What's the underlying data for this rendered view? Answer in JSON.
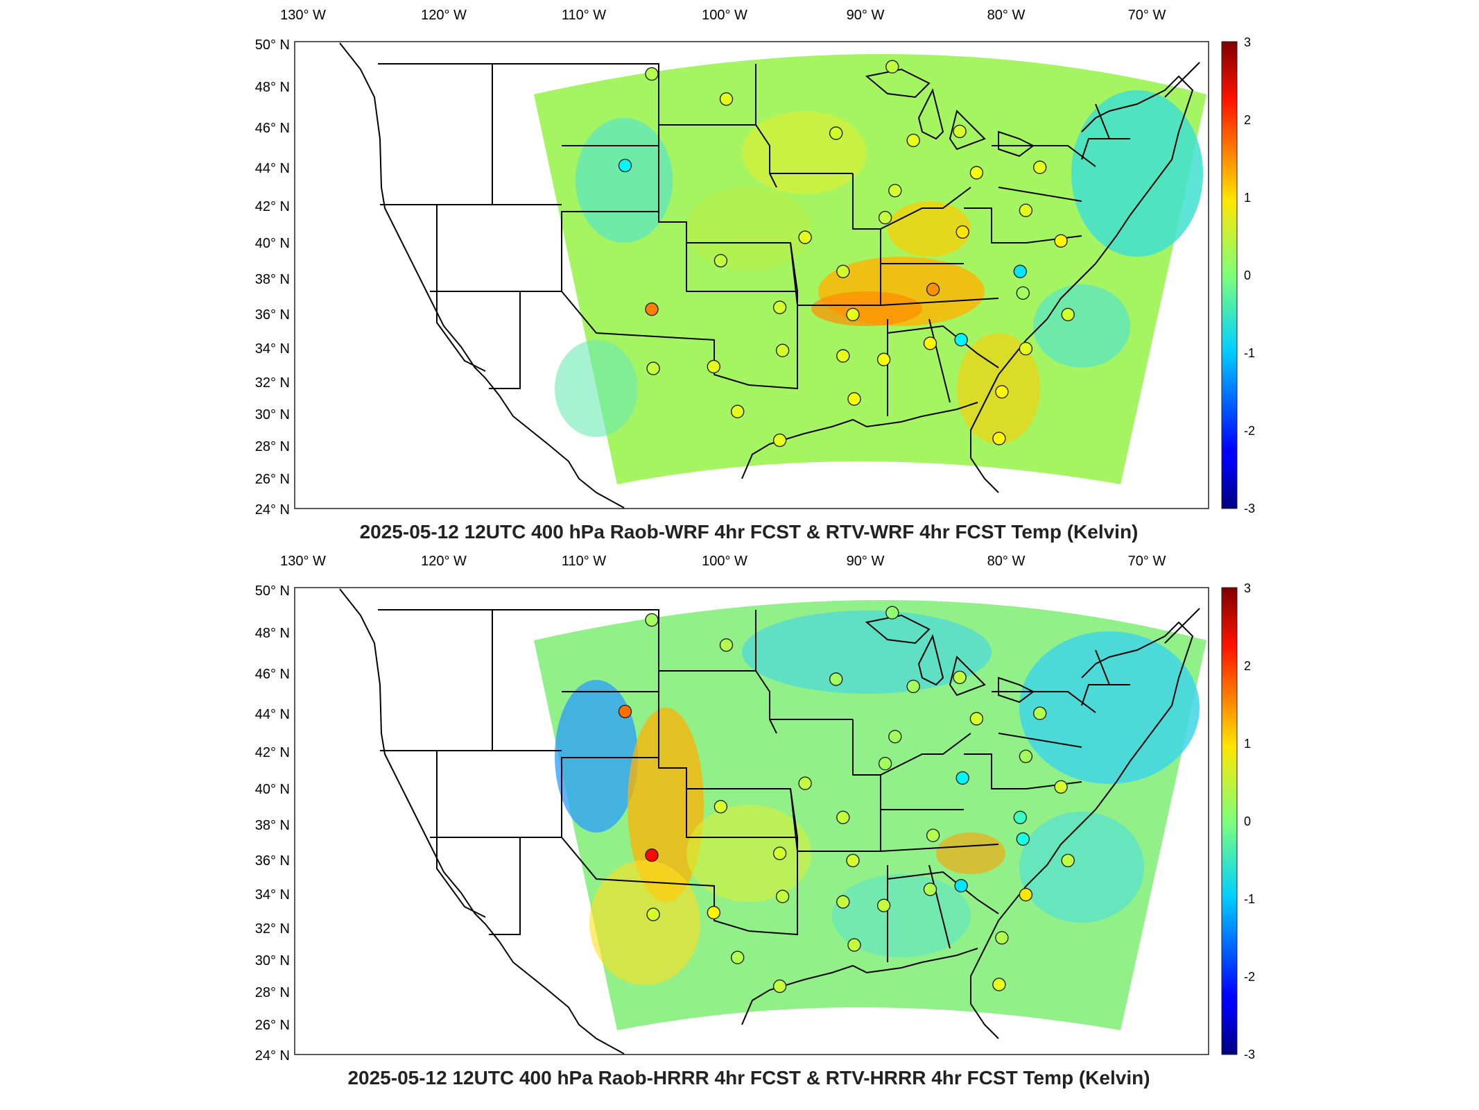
{
  "figure": {
    "panels": [
      {
        "id": "wrf",
        "title": "2025-05-12 12UTC 400 hPa Raob-WRF 4hr FCST & RTV-WRF 4hr FCST Temp (Kelvin)",
        "lon_ticks": [
          "130° W",
          "120° W",
          "110° W",
          "100° W",
          "90° W",
          "80° W",
          "70° W"
        ],
        "lat_ticks": [
          "50° N",
          "48° N",
          "46° N",
          "44° N",
          "42° N",
          "40° N",
          "38° N",
          "36° N",
          "34° N",
          "32° N",
          "30° N",
          "28° N",
          "26° N",
          "24° N"
        ],
        "colorbar": {
          "min": -3,
          "max": 3,
          "ticks": [
            "3",
            "2",
            "1",
            "0",
            "-1",
            "-2",
            "-3"
          ],
          "colormap": "jet"
        },
        "raob_sites": [
          {
            "lon": -106.6,
            "lat": 48.2,
            "value": 0.3
          },
          {
            "lon": -101.3,
            "lat": 46.8,
            "value": 0.6
          },
          {
            "lon": -108.5,
            "lat": 43.1,
            "value": -0.8
          },
          {
            "lon": -93.5,
            "lat": 44.9,
            "value": 0.5
          },
          {
            "lon": -89.5,
            "lat": 48.6,
            "value": 0.4
          },
          {
            "lon": -88.0,
            "lat": 44.5,
            "value": 0.6
          },
          {
            "lon": -84.7,
            "lat": 45.0,
            "value": 0.5
          },
          {
            "lon": -83.5,
            "lat": 42.7,
            "value": 0.7
          },
          {
            "lon": -79.0,
            "lat": 43.0,
            "value": 0.6
          },
          {
            "lon": -89.3,
            "lat": 41.7,
            "value": 0.5
          },
          {
            "lon": -90.0,
            "lat": 40.2,
            "value": 0.4
          },
          {
            "lon": -84.5,
            "lat": 39.4,
            "value": 0.9
          },
          {
            "lon": -80.0,
            "lat": 40.6,
            "value": 0.6
          },
          {
            "lon": -77.5,
            "lat": 38.9,
            "value": 0.8
          },
          {
            "lon": -80.4,
            "lat": 37.2,
            "value": -0.9
          },
          {
            "lon": -95.7,
            "lat": 39.1,
            "value": 0.6
          },
          {
            "lon": -101.7,
            "lat": 37.8,
            "value": 0.4
          },
          {
            "lon": -106.6,
            "lat": 35.1,
            "value": 1.5
          },
          {
            "lon": -97.5,
            "lat": 35.2,
            "value": 0.5
          },
          {
            "lon": -93.0,
            "lat": 37.2,
            "value": 0.5
          },
          {
            "lon": -92.3,
            "lat": 34.8,
            "value": 0.6
          },
          {
            "lon": -86.6,
            "lat": 36.2,
            "value": 1.4
          },
          {
            "lon": -80.2,
            "lat": 36.0,
            "value": 0.2
          },
          {
            "lon": -77.0,
            "lat": 34.8,
            "value": 0.5
          },
          {
            "lon": -84.6,
            "lat": 33.4,
            "value": -0.8
          },
          {
            "lon": -86.8,
            "lat": 33.2,
            "value": 0.8
          },
          {
            "lon": -90.1,
            "lat": 32.3,
            "value": 0.7
          },
          {
            "lon": -97.3,
            "lat": 32.8,
            "value": 0.5
          },
          {
            "lon": -102.2,
            "lat": 31.9,
            "value": 0.6
          },
          {
            "lon": -106.5,
            "lat": 31.8,
            "value": 0.4
          },
          {
            "lon": -93.0,
            "lat": 32.5,
            "value": 0.6
          },
          {
            "lon": -80.0,
            "lat": 32.9,
            "value": 0.6
          },
          {
            "lon": -81.7,
            "lat": 30.5,
            "value": 0.8
          },
          {
            "lon": -92.2,
            "lat": 30.1,
            "value": 0.7
          },
          {
            "lon": -97.5,
            "lat": 27.8,
            "value": 0.6
          },
          {
            "lon": -100.5,
            "lat": 29.4,
            "value": 0.6
          },
          {
            "lon": -81.9,
            "lat": 27.9,
            "value": 0.8
          }
        ]
      },
      {
        "id": "hrrr",
        "title": "2025-05-12 12UTC 400 hPa Raob-HRRR 4hr FCST & RTV-HRRR 4hr FCST Temp (Kelvin)",
        "lon_ticks": [
          "130° W",
          "120° W",
          "110° W",
          "100° W",
          "90° W",
          "80° W",
          "70° W"
        ],
        "lat_ticks": [
          "50° N",
          "48° N",
          "46° N",
          "44° N",
          "42° N",
          "40° N",
          "38° N",
          "36° N",
          "34° N",
          "32° N",
          "30° N",
          "28° N",
          "26° N",
          "24° N"
        ],
        "colorbar": {
          "min": -3,
          "max": 3,
          "ticks": [
            "3",
            "2",
            "1",
            "0",
            "-1",
            "-2",
            "-3"
          ],
          "colormap": "jet"
        },
        "raob_sites": [
          {
            "lon": -106.6,
            "lat": 48.2,
            "value": 0.2
          },
          {
            "lon": -101.3,
            "lat": 46.8,
            "value": 0.3
          },
          {
            "lon": -108.5,
            "lat": 43.1,
            "value": 1.6
          },
          {
            "lon": -93.5,
            "lat": 44.9,
            "value": 0.2
          },
          {
            "lon": -89.5,
            "lat": 48.6,
            "value": 0.1
          },
          {
            "lon": -88.0,
            "lat": 44.5,
            "value": 0.2
          },
          {
            "lon": -84.7,
            "lat": 45.0,
            "value": 0.4
          },
          {
            "lon": -83.5,
            "lat": 42.7,
            "value": 0.5
          },
          {
            "lon": -79.0,
            "lat": 43.0,
            "value": 0.3
          },
          {
            "lon": -89.3,
            "lat": 41.7,
            "value": 0.2
          },
          {
            "lon": -90.0,
            "lat": 40.2,
            "value": 0.2
          },
          {
            "lon": -84.5,
            "lat": 39.4,
            "value": -0.8
          },
          {
            "lon": -80.0,
            "lat": 40.6,
            "value": 0.2
          },
          {
            "lon": -77.5,
            "lat": 38.9,
            "value": 0.5
          },
          {
            "lon": -80.4,
            "lat": 37.2,
            "value": -0.4
          },
          {
            "lon": -95.7,
            "lat": 39.1,
            "value": 0.4
          },
          {
            "lon": -101.7,
            "lat": 37.8,
            "value": 0.5
          },
          {
            "lon": -106.6,
            "lat": 35.1,
            "value": 2.2
          },
          {
            "lon": -97.5,
            "lat": 35.2,
            "value": 0.5
          },
          {
            "lon": -93.0,
            "lat": 37.2,
            "value": 0.4
          },
          {
            "lon": -92.3,
            "lat": 34.8,
            "value": 0.5
          },
          {
            "lon": -86.6,
            "lat": 36.2,
            "value": 0.3
          },
          {
            "lon": -80.2,
            "lat": 36.0,
            "value": -0.6
          },
          {
            "lon": -77.0,
            "lat": 34.8,
            "value": 0.4
          },
          {
            "lon": -84.6,
            "lat": 33.4,
            "value": -0.9
          },
          {
            "lon": -86.8,
            "lat": 33.2,
            "value": 0.3
          },
          {
            "lon": -90.1,
            "lat": 32.3,
            "value": 0.4
          },
          {
            "lon": -97.3,
            "lat": 32.8,
            "value": 0.4
          },
          {
            "lon": -102.2,
            "lat": 31.9,
            "value": 0.8
          },
          {
            "lon": -106.5,
            "lat": 31.8,
            "value": 0.5
          },
          {
            "lon": -93.0,
            "lat": 32.5,
            "value": 0.4
          },
          {
            "lon": -80.0,
            "lat": 32.9,
            "value": 0.9
          },
          {
            "lon": -81.7,
            "lat": 30.5,
            "value": 0.3
          },
          {
            "lon": -92.2,
            "lat": 30.1,
            "value": 0.4
          },
          {
            "lon": -97.5,
            "lat": 27.8,
            "value": 0.4
          },
          {
            "lon": -100.5,
            "lat": 29.4,
            "value": 0.3
          },
          {
            "lon": -81.9,
            "lat": 27.9,
            "value": 0.6
          }
        ]
      }
    ]
  }
}
